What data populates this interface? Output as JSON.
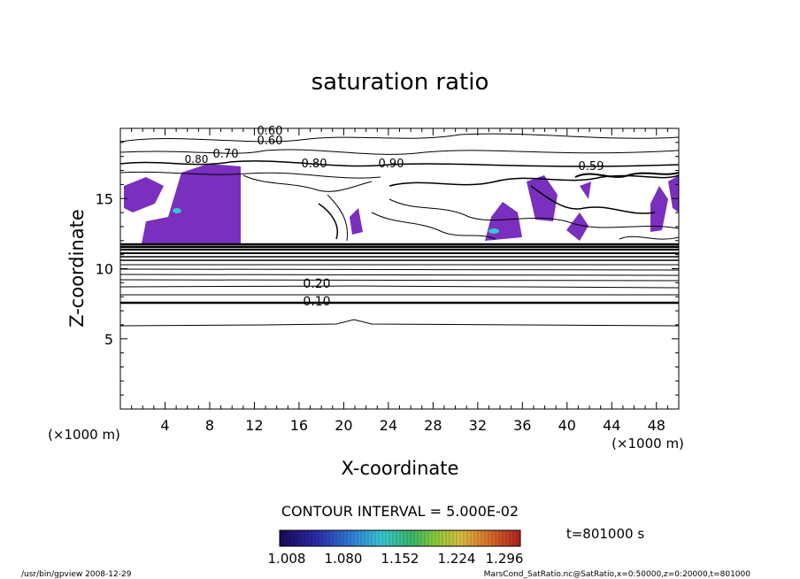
{
  "chart_data": {
    "type": "contour",
    "title": "saturation ratio",
    "xlabel": "X-coordinate",
    "ylabel": "Z-coordinate",
    "x_unit": "(×1000 m)",
    "z_unit": "(×1000 m)",
    "xlim": [
      0,
      50
    ],
    "ylim": [
      0,
      20
    ],
    "x_ticks": [
      "4",
      "8",
      "12",
      "16",
      "20",
      "24",
      "28",
      "32",
      "36",
      "40",
      "44",
      "48"
    ],
    "y_ticks": [
      "5",
      "10",
      "15"
    ],
    "contour_interval_label": "CONTOUR INTERVAL = 5.000E-02",
    "time_label": "t=801000 s",
    "contour_labels": [
      "0.60",
      "0.60",
      "0.70",
      "0.80",
      "0.80",
      "0.90",
      "0.59",
      "0.10",
      "0.20"
    ],
    "colorbar": {
      "ticks": [
        "1.008",
        "1.080",
        "1.152",
        "1.224",
        "1.296"
      ],
      "colors": [
        "#1a0a5a",
        "#2a2aa8",
        "#2f7fd8",
        "#37c7d4",
        "#3ab86a",
        "#8acb3a",
        "#d8c040",
        "#d8702a",
        "#b02020"
      ]
    },
    "footer_left": "/usr/bin/gpview  2008-12-29",
    "footer_right": "MarsCond_SatRatio.nc@SatRatio,x=0:50000,z=0:20000,t=801000"
  }
}
